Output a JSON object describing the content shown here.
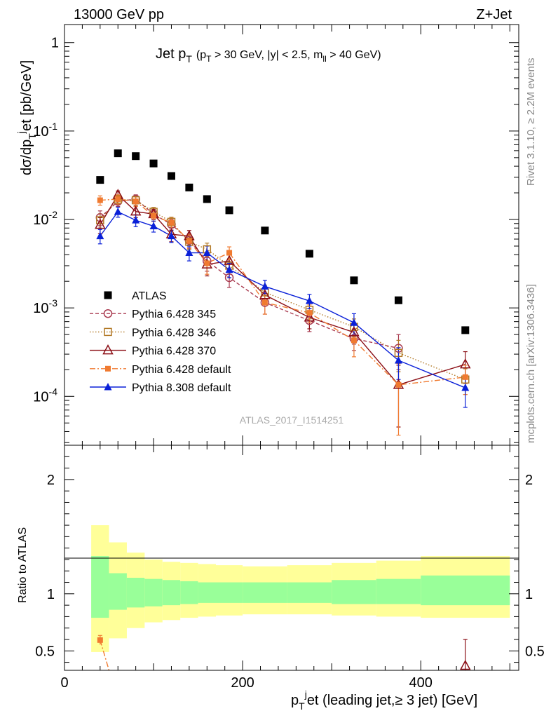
{
  "header": {
    "energy_label": "13000 GeV pp",
    "process_label": "Z+Jet"
  },
  "side_labels": {
    "rivet": "Rivet 3.1.10, ≥ 2.2M events",
    "mcplots": "mcplots.cern.ch [arXiv:1306.3436]"
  },
  "chart_data": {
    "type": "scatter",
    "title": {
      "main": "Jet p",
      "main_sub": "T",
      "cuts": "(p",
      "cuts_sub": "T",
      "cuts_rest": " > 30 GeV, |y| < 2.5, m",
      "cuts_sub2": "ll",
      "cuts_end": " > 40 GeV)"
    },
    "watermark": "ATLAS_2017_I1514251",
    "ylabel": {
      "a": "dσ/dp",
      "a_sub": "T",
      "a_sup": "j",
      "b": "et [pb/GeV]"
    },
    "xlabel": {
      "a": "p",
      "a_sub": "T",
      "a_sup": "j",
      "b": "et (leading jet,≥ 3 jet) [GeV]"
    },
    "ratio_ylabel": "Ratio to ATLAS",
    "xlim": [
      0,
      510
    ],
    "ylim": [
      2.8e-05,
      1.6
    ],
    "yscale": "log",
    "ratio_ylim": [
      0.33,
      2.3
    ],
    "x_ticks": [
      "0",
      "200",
      "400"
    ],
    "y_ticks": [
      "1",
      "10-1",
      "10-2",
      "10-3",
      "10-4"
    ],
    "ratio_ticks": [
      "2",
      "1",
      "0.5"
    ],
    "legend_position": "bottom-left",
    "bins": [
      {
        "lo": 30,
        "hi": 50
      },
      {
        "lo": 50,
        "hi": 70
      },
      {
        "lo": 70,
        "hi": 90
      },
      {
        "lo": 90,
        "hi": 110
      },
      {
        "lo": 110,
        "hi": 130
      },
      {
        "lo": 130,
        "hi": 150
      },
      {
        "lo": 150,
        "hi": 170
      },
      {
        "lo": 170,
        "hi": 200
      },
      {
        "lo": 200,
        "hi": 250
      },
      {
        "lo": 250,
        "hi": 300
      },
      {
        "lo": 300,
        "hi": 350
      },
      {
        "lo": 350,
        "hi": 400
      },
      {
        "lo": 400,
        "hi": 500
      }
    ],
    "x": [
      40,
      60,
      80,
      100,
      120,
      140,
      160,
      185,
      225,
      275,
      325,
      375,
      450
    ],
    "band_inner": [
      [
        0.79,
        1.33
      ],
      [
        0.86,
        1.18
      ],
      [
        0.88,
        1.14
      ],
      [
        0.89,
        1.13
      ],
      [
        0.9,
        1.12
      ],
      [
        0.91,
        1.11
      ],
      [
        0.92,
        1.1
      ],
      [
        0.92,
        1.1
      ],
      [
        0.92,
        1.1
      ],
      [
        0.92,
        1.1
      ],
      [
        0.91,
        1.12
      ],
      [
        0.91,
        1.13
      ],
      [
        0.9,
        1.16
      ]
    ],
    "band_outer": [
      [
        0.49,
        1.6
      ],
      [
        0.61,
        1.45
      ],
      [
        0.7,
        1.36
      ],
      [
        0.75,
        1.3
      ],
      [
        0.77,
        1.28
      ],
      [
        0.79,
        1.27
      ],
      [
        0.8,
        1.26
      ],
      [
        0.81,
        1.25
      ],
      [
        0.82,
        1.24
      ],
      [
        0.82,
        1.25
      ],
      [
        0.81,
        1.27
      ],
      [
        0.8,
        1.29
      ],
      [
        0.79,
        1.33
      ]
    ],
    "series": [
      {
        "name": "ATLAS",
        "color": "#000000",
        "marker": "square-filled",
        "line": "none",
        "values": [
          0.028,
          0.056,
          0.052,
          0.043,
          0.031,
          0.023,
          0.017,
          0.0127,
          0.0075,
          0.0041,
          0.00205,
          0.00122,
          0.00056
        ],
        "err": [
          0,
          0,
          0,
          0,
          0,
          0,
          0,
          0,
          0,
          0,
          0,
          0,
          0
        ]
      },
      {
        "name": "Pythia 6.428 345",
        "color": "#a93b50",
        "marker": "circle-open",
        "line": "dashed",
        "values": [
          0.0105,
          0.016,
          0.017,
          0.0115,
          0.0088,
          0.0058,
          0.0034,
          0.0022,
          0.00115,
          0.00072,
          0.00045,
          0.00035,
          null
        ],
        "err": [
          0.002,
          0.002,
          0.002,
          0.0015,
          0.0012,
          0.001,
          0.0008,
          0.0005,
          0.0003,
          0.00018,
          0.00012,
          0.00015,
          0
        ]
      },
      {
        "name": "Pythia 6.428 346",
        "color": "#b27926",
        "marker": "square-open",
        "line": "dotted",
        "values": [
          0.0098,
          0.0168,
          0.0165,
          0.0122,
          0.0094,
          0.0056,
          0.0046,
          0.003,
          0.0015,
          0.00095,
          0.00061,
          0.00031,
          0.000155
        ],
        "err": [
          0.0018,
          0.002,
          0.002,
          0.0015,
          0.0012,
          0.001,
          0.0008,
          0.0006,
          0.0003,
          0.0002,
          0.00014,
          0.00012,
          5e-05
        ]
      },
      {
        "name": "Pythia 6.428 370",
        "color": "#8b0e15",
        "marker": "triangle-open",
        "line": "solid",
        "values": [
          0.0087,
          0.019,
          0.0123,
          0.0115,
          0.0068,
          0.0065,
          0.0031,
          0.0034,
          0.0014,
          0.00078,
          0.00053,
          0.000135,
          0.00023
        ],
        "err": [
          0.0018,
          0.002,
          0.0018,
          0.0015,
          0.0012,
          0.001,
          0.0008,
          0.0007,
          0.0003,
          0.0002,
          0.00014,
          9e-05,
          9e-05
        ]
      },
      {
        "name": "Pythia 6.428 default",
        "color": "#f07a30",
        "marker": "square-filled-small",
        "line": "dashdot",
        "values": [
          0.0165,
          0.017,
          0.016,
          0.011,
          0.0092,
          0.0057,
          0.0032,
          0.0042,
          0.00115,
          0.00088,
          0.00043,
          0.000135,
          0.000165
        ],
        "err": [
          0.002,
          0.002,
          0.002,
          0.0015,
          0.0012,
          0.001,
          0.0008,
          0.0007,
          0.0003,
          0.0002,
          0.00015,
          0.0001,
          6e-05
        ]
      },
      {
        "name": "Pythia 8.308 default",
        "color": "#0a20d8",
        "marker": "triangle-filled",
        "line": "solid",
        "values": [
          0.0065,
          0.0122,
          0.0098,
          0.0084,
          0.0065,
          0.0042,
          0.0042,
          0.0027,
          0.00175,
          0.0012,
          0.00068,
          0.000255,
          0.000125
        ],
        "err": [
          0.0012,
          0.0016,
          0.0015,
          0.0012,
          0.001,
          0.0008,
          0.0008,
          0.0005,
          0.0003,
          0.00022,
          0.00018,
          0.0001,
          5e-05
        ]
      }
    ],
    "ratio_points": [
      {
        "series": "Pythia 6.428 default",
        "x": 40,
        "y": 0.595,
        "err": 0.04,
        "tail_to_x": 50
      },
      {
        "series": "Pythia 6.428 370",
        "x": 450,
        "y": 0.37,
        "err": 0.23
      }
    ]
  }
}
